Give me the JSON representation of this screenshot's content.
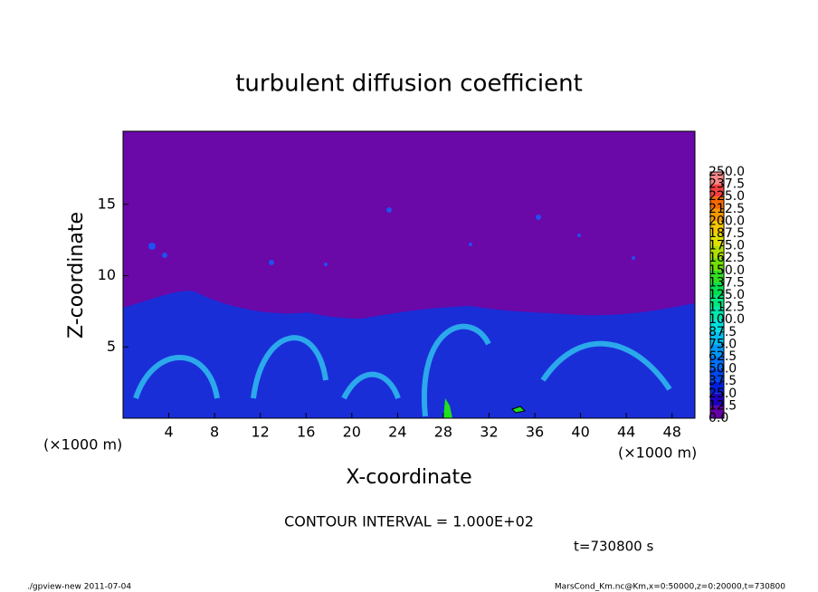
{
  "chart_data": {
    "type": "heatmap",
    "title": "turbulent diffusion coefficient",
    "xlabel": "X-coordinate",
    "ylabel": "Z-coordinate",
    "x_unit_left": "(×1000 m)",
    "x_unit_right": "(×1000 m)",
    "xlim": [
      0,
      50
    ],
    "ylim": [
      0,
      20
    ],
    "xticks": [
      4,
      8,
      12,
      16,
      20,
      24,
      28,
      32,
      36,
      40,
      44,
      48
    ],
    "yticks": [
      5,
      10,
      15
    ],
    "colorbar": {
      "levels": [
        {
          "value": 0,
          "label": "0.0"
        },
        {
          "value": 12.5,
          "label": "12.5"
        },
        {
          "value": 25,
          "label": "25.0"
        },
        {
          "value": 37.5,
          "label": "37.5"
        },
        {
          "value": 50,
          "label": "50.0"
        },
        {
          "value": 62.5,
          "label": "62.5"
        },
        {
          "value": 75,
          "label": "75.0"
        },
        {
          "value": 87.5,
          "label": "87.5"
        },
        {
          "value": 100,
          "label": "100.0"
        },
        {
          "value": 112.5,
          "label": "112.5"
        },
        {
          "value": 125,
          "label": "125.0"
        },
        {
          "value": 137.5,
          "label": "137.5"
        },
        {
          "value": 150,
          "label": "150.0"
        },
        {
          "value": 162.5,
          "label": "162.5"
        },
        {
          "value": 175,
          "label": "175.0"
        },
        {
          "value": 187.5,
          "label": "187.5"
        },
        {
          "value": 200,
          "label": "200.0"
        },
        {
          "value": 212.5,
          "label": "212.5"
        },
        {
          "value": 225,
          "label": "225.0"
        },
        {
          "value": 237.5,
          "label": "237.5"
        },
        {
          "value": 250,
          "label": "250.0"
        }
      ],
      "colors": [
        "#6600a8",
        "#2000c0",
        "#0020e0",
        "#0048f0",
        "#0070f8",
        "#0098f8",
        "#00c0f0",
        "#00e0e0",
        "#00e8b0",
        "#00e880",
        "#00e050",
        "#30e020",
        "#70e000",
        "#b0e000",
        "#e0e000",
        "#f8c800",
        "#f89800",
        "#f86800",
        "#f84040",
        "#f88888"
      ]
    },
    "contour_interval": "CONTOUR INTERVAL = 1.000E+02",
    "time_label": "t=730800 s",
    "footer_left": "./gpview-new  2011-07-04",
    "footer_right": "MarsCond_Km.nc@Km,x=0:50000,z=0:20000,t=730800"
  }
}
